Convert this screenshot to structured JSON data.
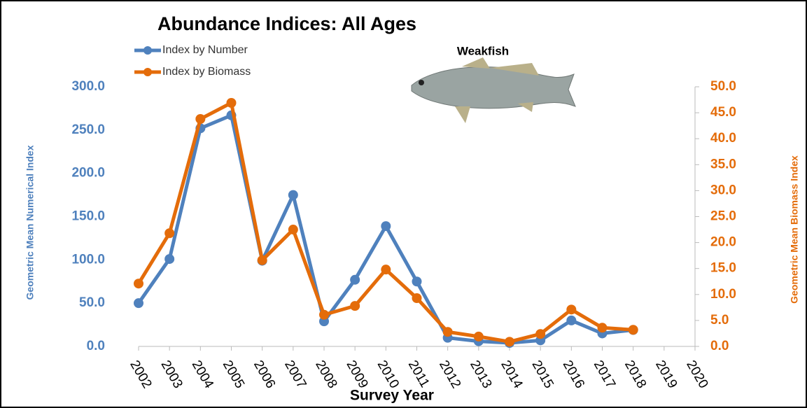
{
  "chart_data": {
    "type": "line",
    "title": "Abundance Indices:  All Ages",
    "subtitle": "Weakfish",
    "x_label": "Survey Year",
    "y_label": "Geometric Mean Numerical Index",
    "y2_label": "Geometric Mean Biomass Index",
    "categories": [
      "2002",
      "2003",
      "2004",
      "2005",
      "2006",
      "2007",
      "2008",
      "2009",
      "2010",
      "2011",
      "2012",
      "2013",
      "2014",
      "2015",
      "2016",
      "2017",
      "2018",
      "2019",
      "2020"
    ],
    "series": [
      {
        "name": "Index by Number",
        "color": "#4f81bd",
        "values": [
          50,
          101,
          252,
          267,
          99,
          175,
          29,
          77,
          139,
          75,
          10,
          6,
          4,
          7,
          30,
          15,
          19,
          null,
          null
        ]
      },
      {
        "name": "Index by Biomass",
        "color": "#e46c0a",
        "axis": "y2",
        "values": [
          12.1,
          21.8,
          43.8,
          46.9,
          16.6,
          22.5,
          6.1,
          7.8,
          14.8,
          9.3,
          2.8,
          1.9,
          0.9,
          2.4,
          7.1,
          3.6,
          3.2,
          null,
          null
        ]
      }
    ],
    "ylim": [
      0,
      300
    ],
    "yticks": [
      {
        "value": 0,
        "label": "0.0"
      },
      {
        "value": 50,
        "label": "50.0"
      },
      {
        "value": 100,
        "label": "100.0"
      },
      {
        "value": 150,
        "label": "150.0"
      },
      {
        "value": 200,
        "label": "200.0"
      },
      {
        "value": 250,
        "label": "250.0"
      },
      {
        "value": 300,
        "label": "300.0"
      }
    ],
    "y2lim": [
      0,
      50
    ],
    "y2ticks": [
      {
        "value": 0,
        "label": "0.0"
      },
      {
        "value": 5,
        "label": "5.0"
      },
      {
        "value": 10,
        "label": "10.0"
      },
      {
        "value": 15,
        "label": "15.0"
      },
      {
        "value": 20,
        "label": "20.0"
      },
      {
        "value": 25,
        "label": "25.0"
      },
      {
        "value": 30,
        "label": "30.0"
      },
      {
        "value": 35,
        "label": "35.0"
      },
      {
        "value": 40,
        "label": "40.0"
      },
      {
        "value": 45,
        "label": "45.0"
      },
      {
        "value": 50,
        "label": "50.0"
      }
    ],
    "grid": false
  }
}
